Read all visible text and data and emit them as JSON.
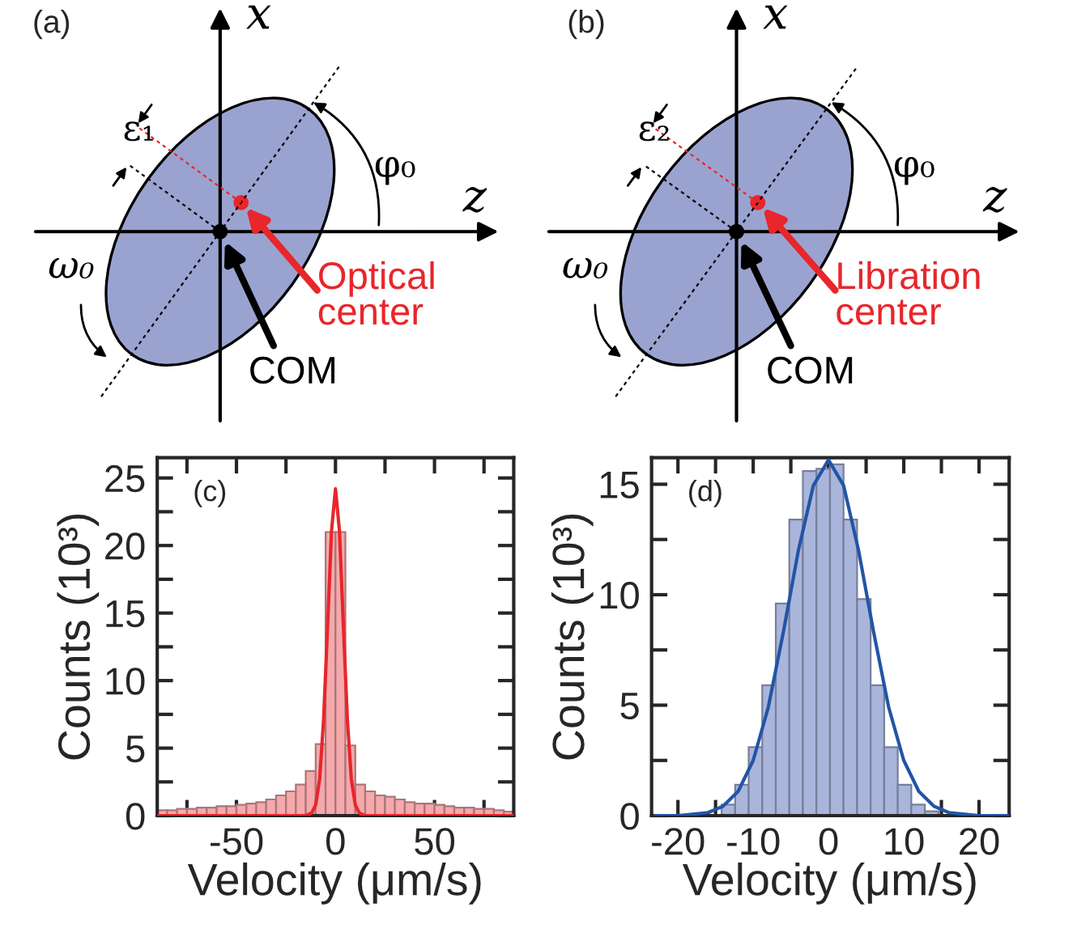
{
  "chart_data": [
    {
      "type": "other",
      "title": "(a)",
      "colors": [
        "#9aa3cf",
        "#e8262b"
      ],
      "annotations": [
        "x",
        "z",
        "ε₁",
        "φ₀",
        "ω₀",
        "Optical\ncenter",
        "COM"
      ]
    },
    {
      "type": "other",
      "title": "(b)",
      "colors": [
        "#9aa3cf",
        "#e8262b"
      ],
      "annotations": [
        "x",
        "z",
        "ε₂",
        "φ₀",
        "ω₀",
        "Libration\ncenter",
        "COM"
      ]
    },
    {
      "type": "histogram",
      "xlabel": "Velocity (μm/s)",
      "ylabel": "Counts (10³)",
      "annotations": [
        "(c)"
      ],
      "xlim": [
        -90,
        90
      ],
      "ylim": [
        0,
        26.5
      ],
      "xticks": [
        {
          "value": -75,
          "label": null
        },
        -50,
        {
          "value": -25,
          "label": null
        },
        0,
        {
          "value": 25,
          "label": null
        },
        50,
        {
          "value": 75,
          "label": null
        }
      ],
      "yticks": [
        0,
        {
          "value": 2.5,
          "label": null
        },
        5,
        {
          "value": 7.5,
          "label": null
        },
        10,
        {
          "value": 12.5,
          "label": null
        },
        15,
        {
          "value": 17.5,
          "label": null
        },
        20,
        {
          "value": 22.5,
          "label": null
        },
        25
      ],
      "series": [
        {
          "type": "histogram",
          "color": "#f5a9ac",
          "bins": [
            -90,
            -85,
            -80,
            -75,
            -70,
            -65,
            -60,
            -55,
            -50,
            -45,
            -40,
            -35,
            -30,
            -25,
            -20,
            -15,
            -10,
            -5,
            0,
            5,
            10,
            15,
            20,
            25,
            30,
            35,
            40,
            45,
            50,
            55,
            60,
            65,
            70,
            75,
            80,
            85,
            90
          ],
          "values": [
            0.4,
            0.4,
            0.5,
            0.5,
            0.6,
            0.6,
            0.7,
            0.7,
            0.8,
            0.9,
            1.0,
            1.2,
            1.5,
            1.8,
            2.3,
            3.3,
            5.3,
            21,
            21,
            5.2,
            2.3,
            1.8,
            1.5,
            1.4,
            1.2,
            1.0,
            0.9,
            0.9,
            0.8,
            0.7,
            0.6,
            0.6,
            0.5,
            0.5,
            0.4,
            0.3
          ]
        },
        {
          "type": "line",
          "color": "#e8262b",
          "x": [
            -90,
            -15,
            -12,
            -10,
            -8,
            -6,
            -4,
            -2,
            0,
            2,
            4,
            6,
            8,
            10,
            12,
            15,
            90
          ],
          "values": [
            0,
            0,
            0.2,
            0.8,
            2.7,
            7.1,
            14,
            21.1,
            24.2,
            21.1,
            14,
            7.1,
            2.7,
            0.8,
            0.2,
            0,
            0
          ]
        }
      ]
    },
    {
      "type": "histogram",
      "xlabel": "Velocity (μm/s)",
      "ylabel": "Counts (10³)",
      "annotations": [
        "(d)"
      ],
      "xlim": [
        -23.5,
        24
      ],
      "ylim": [
        0,
        16.2
      ],
      "xticks": [
        -20,
        {
          "value": -15,
          "label": null
        },
        -10,
        {
          "value": -5,
          "label": null
        },
        0,
        {
          "value": 5,
          "label": null
        },
        10,
        {
          "value": 15,
          "label": null
        },
        20
      ],
      "yticks": [
        0,
        {
          "value": 2.5,
          "label": null
        },
        5,
        {
          "value": 7.5,
          "label": null
        },
        10,
        {
          "value": 12.5,
          "label": null
        },
        15
      ],
      "series": [
        {
          "type": "histogram",
          "color": "#aab5dc",
          "bins": [
            -14.2,
            -12.4,
            -10.6,
            -8.8,
            -7.0,
            -5.2,
            -3.4,
            -1.6,
            0.2,
            2.0,
            3.8,
            5.6,
            7.4,
            9.2,
            11.0,
            12.8,
            14.6
          ],
          "values": [
            0.5,
            1.4,
            3.1,
            5.9,
            9.6,
            13.4,
            15.6,
            15.7,
            15.9,
            13.4,
            9.8,
            5.9,
            3.1,
            1.4,
            0.5,
            0.2
          ]
        },
        {
          "type": "line",
          "color": "#2255a5",
          "x": [
            -23,
            -20,
            -16,
            -14,
            -12,
            -10,
            -8,
            -6,
            -4,
            -2,
            0,
            2,
            4,
            6,
            8,
            10,
            12,
            14,
            16,
            20,
            24
          ],
          "values": [
            0,
            0,
            0.14,
            0.43,
            1.1,
            2.5,
            4.9,
            8.3,
            12,
            14.95,
            16.1,
            14.95,
            12,
            8.3,
            4.9,
            2.5,
            1.1,
            0.43,
            0.14,
            0,
            0
          ]
        }
      ]
    }
  ]
}
